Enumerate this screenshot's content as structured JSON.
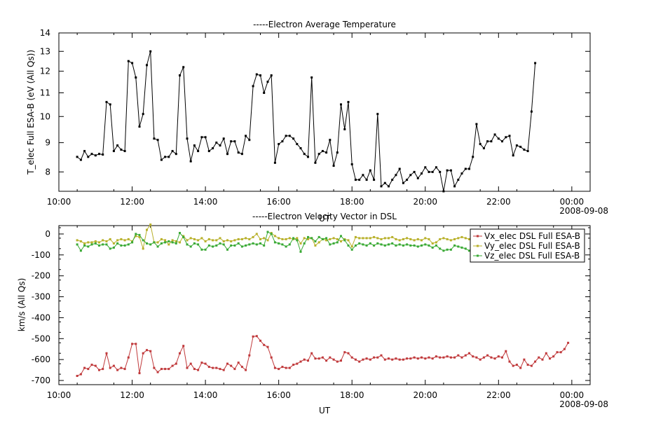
{
  "chart_data": [
    {
      "type": "line",
      "title": "-----Electron Average Temperature",
      "xlabel": "UT",
      "ylabel": "T_elec Full ESA-B (eV (All Qs))",
      "y_scale": "log",
      "ylim": [
        7.4,
        14
      ],
      "y_ticks": [
        8,
        9,
        10,
        11,
        12,
        13,
        14
      ],
      "x_range_hours": [
        10,
        24.5
      ],
      "x_ticks": [
        {
          "hour": 10,
          "label": "10:00"
        },
        {
          "hour": 12,
          "label": "12:00"
        },
        {
          "hour": 14,
          "label": "14:00"
        },
        {
          "hour": 16,
          "label": "16:00"
        },
        {
          "hour": 18,
          "label": "18:00"
        },
        {
          "hour": 20,
          "label": "20:00"
        },
        {
          "hour": 22,
          "label": "22:00"
        },
        {
          "hour": 24,
          "label": "00:00"
        }
      ],
      "date_label": "2008-09-08",
      "series": [
        {
          "name": "T_elec Full ESA-B",
          "color": "#000000",
          "x_start_hour": 10.5,
          "x_step_hour": 0.1,
          "values": [
            8.5,
            8.4,
            8.7,
            8.5,
            8.6,
            8.55,
            8.6,
            8.58,
            10.6,
            10.5,
            8.7,
            8.9,
            8.75,
            8.7,
            12.5,
            12.4,
            11.7,
            9.6,
            10.1,
            12.3,
            13.0,
            9.15,
            9.1,
            8.4,
            8.5,
            8.5,
            8.7,
            8.6,
            11.8,
            12.2,
            9.15,
            8.35,
            8.9,
            8.7,
            9.2,
            9.2,
            8.7,
            8.8,
            9.0,
            8.9,
            9.15,
            8.6,
            9.05,
            9.05,
            8.65,
            8.6,
            9.25,
            9.1,
            11.3,
            11.85,
            11.8,
            11.0,
            11.5,
            11.8,
            8.3,
            8.95,
            9.05,
            9.25,
            9.25,
            9.15,
            8.95,
            8.8,
            8.6,
            8.5,
            11.7,
            8.3,
            8.6,
            8.7,
            8.65,
            9.1,
            8.2,
            8.65,
            10.5,
            9.5,
            10.6,
            8.25,
            7.75,
            7.75,
            7.9,
            7.75,
            8.05,
            7.75,
            10.1,
            7.55,
            7.65,
            7.55,
            7.75,
            7.9,
            8.1,
            7.65,
            7.75,
            7.9,
            8.0,
            7.8,
            7.95,
            8.15,
            8.0,
            8.0,
            8.15,
            8.0,
            7.4,
            8.05,
            8.05,
            7.55,
            7.75,
            7.95,
            8.1,
            8.1,
            8.5,
            9.7,
            8.95,
            8.8,
            9.05,
            9.05,
            9.3,
            9.15,
            9.05,
            9.2,
            9.25,
            8.55,
            8.9,
            8.85,
            8.75,
            8.7,
            10.2,
            12.4
          ]
        }
      ]
    },
    {
      "type": "line",
      "title": "-----Electron Velocity Vector in DSL",
      "xlabel": "UT",
      "ylabel": "km/s (All Qs)",
      "ylim": [
        -720,
        40
      ],
      "y_ticks": [
        0,
        -100,
        -200,
        -300,
        -400,
        -500,
        -600,
        -700
      ],
      "x_range_hours": [
        10,
        24.5
      ],
      "x_ticks": [
        {
          "hour": 10,
          "label": "10:00"
        },
        {
          "hour": 12,
          "label": "12:00"
        },
        {
          "hour": 14,
          "label": "14:00"
        },
        {
          "hour": 16,
          "label": "16:00"
        },
        {
          "hour": 18,
          "label": "18:00"
        },
        {
          "hour": 20,
          "label": "20:00"
        },
        {
          "hour": 22,
          "label": "22:00"
        },
        {
          "hour": 24,
          "label": "00:00"
        }
      ],
      "date_label": "2008-09-08",
      "legend_position": "top-right",
      "series": [
        {
          "name": "Vx_elec DSL Full ESA-B",
          "color": "#c0393b",
          "x_start_hour": 10.5,
          "x_step_hour": 0.1,
          "values": [
            -678,
            -670,
            -640,
            -645,
            -625,
            -630,
            -650,
            -645,
            -570,
            -640,
            -630,
            -650,
            -640,
            -645,
            -590,
            -525,
            -525,
            -665,
            -570,
            -555,
            -560,
            -640,
            -660,
            -645,
            -645,
            -645,
            -630,
            -620,
            -570,
            -535,
            -640,
            -620,
            -645,
            -650,
            -615,
            -620,
            -635,
            -640,
            -640,
            -645,
            -650,
            -620,
            -630,
            -645,
            -615,
            -635,
            -650,
            -580,
            -490,
            -488,
            -510,
            -530,
            -540,
            -590,
            -640,
            -645,
            -635,
            -640,
            -640,
            -625,
            -620,
            -610,
            -600,
            -605,
            -570,
            -595,
            -595,
            -590,
            -605,
            -590,
            -600,
            -610,
            -605,
            -565,
            -570,
            -590,
            -600,
            -610,
            -600,
            -595,
            -600,
            -590,
            -590,
            -580,
            -600,
            -595,
            -600,
            -595,
            -600,
            -600,
            -595,
            -595,
            -590,
            -595,
            -590,
            -595,
            -590,
            -595,
            -585,
            -590,
            -590,
            -585,
            -590,
            -590,
            -580,
            -590,
            -580,
            -570,
            -585,
            -590,
            -600,
            -590,
            -580,
            -590,
            -595,
            -585,
            -590,
            -560,
            -610,
            -630,
            -625,
            -640,
            -600,
            -625,
            -630,
            -610,
            -590,
            -600,
            -570,
            -595,
            -585,
            -565,
            -565,
            -550,
            -520
          ]
        },
        {
          "name": "Vy_elec DSL Full ESA-B",
          "color": "#b8b02a",
          "x_start_hour": 10.5,
          "x_step_hour": 0.1,
          "values": [
            -30,
            -35,
            -45,
            -40,
            -40,
            -35,
            -40,
            -30,
            -35,
            -25,
            -45,
            -30,
            -25,
            -30,
            -25,
            -35,
            -10,
            -15,
            -70,
            20,
            45,
            -40,
            -40,
            -25,
            -30,
            -50,
            -30,
            -35,
            -40,
            -10,
            -30,
            -20,
            -25,
            -30,
            -20,
            -35,
            -25,
            -30,
            -30,
            -20,
            -35,
            -30,
            -35,
            -30,
            -25,
            -25,
            -20,
            -25,
            -15,
            0,
            -25,
            -20,
            -30,
            5,
            -10,
            -20,
            -25,
            -25,
            -20,
            -25,
            -20,
            -45,
            -20,
            -25,
            -20,
            -55,
            -40,
            -25,
            -30,
            -25,
            -20,
            -25,
            -35,
            -25,
            -30,
            -60,
            -15,
            -20,
            -20,
            -20,
            -20,
            -15,
            -20,
            -25,
            -20,
            -20,
            -15,
            -25,
            -30,
            -25,
            -20,
            -25,
            -30,
            -25,
            -30,
            -20,
            -25,
            -45,
            -40,
            -25,
            -20,
            -25,
            -30,
            -25,
            -20,
            -15,
            -20,
            -25,
            -30,
            -20,
            -35,
            -25,
            -30,
            -25,
            -30,
            -20,
            -15,
            -30,
            -50,
            -40,
            -25,
            -45,
            -30,
            -35,
            -40,
            -35,
            -30,
            -40,
            -30,
            -35,
            -40,
            -40,
            -70,
            -85,
            -75
          ]
        },
        {
          "name": "Vz_elec DSL Full ESA-B",
          "color": "#3aaa35",
          "x_start_hour": 10.5,
          "x_step_hour": 0.1,
          "values": [
            -50,
            -80,
            -55,
            -60,
            -50,
            -45,
            -55,
            -50,
            -50,
            -70,
            -65,
            -45,
            -55,
            -55,
            -50,
            -40,
            0,
            -5,
            -30,
            -45,
            -50,
            -40,
            -60,
            -45,
            -40,
            -35,
            -40,
            -45,
            5,
            -15,
            -50,
            -60,
            -45,
            -50,
            -75,
            -75,
            -55,
            -60,
            -55,
            -45,
            -50,
            -75,
            -55,
            -55,
            -45,
            -60,
            -55,
            -50,
            -45,
            -50,
            -45,
            -55,
            10,
            0,
            -40,
            -45,
            -50,
            -60,
            -50,
            -20,
            -30,
            -85,
            -45,
            -15,
            -20,
            -35,
            -15,
            -25,
            -20,
            -50,
            -45,
            -40,
            -10,
            -30,
            -55,
            -75,
            -55,
            -45,
            -50,
            -55,
            -45,
            -55,
            -45,
            -50,
            -55,
            -50,
            -45,
            -55,
            -50,
            -55,
            -50,
            -55,
            -55,
            -60,
            -55,
            -50,
            -55,
            -65,
            -55,
            -70,
            -80,
            -75,
            -75,
            -55,
            -60,
            -65,
            -70,
            -80,
            -85,
            -75,
            -65,
            -70,
            -60,
            -55,
            -45,
            -55,
            -50,
            -60,
            -50,
            -55,
            -45,
            -50,
            -55,
            -50,
            -55,
            -55,
            -60,
            -50,
            -55,
            -60,
            -45,
            -50,
            -55,
            -60,
            -50
          ]
        }
      ]
    }
  ]
}
